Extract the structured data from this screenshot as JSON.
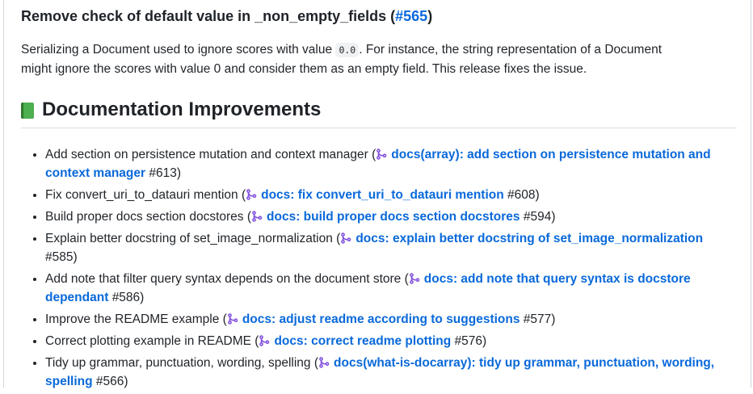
{
  "fix_section": {
    "title": "Remove check of default value in _non_empty_fields",
    "issue_link": "#565",
    "para_before_code": "Serializing a Document used to ignore scores with value ",
    "code": "0.0",
    "para_after_code": ". For instance, the string representation of a Document might ignore the scores with value 0 and consider them as an empty field. This release fixes the issue."
  },
  "docs_section": {
    "icon": "green-book-icon",
    "title": "Documentation Improvements",
    "items": [
      {
        "text": "Add section on persistence mutation and context manager",
        "pr_title": "docs(array): add section on persistence mutation and context manager",
        "pr_number": "#613"
      },
      {
        "text": "Fix convert_uri_to_datauri mention",
        "pr_title": "docs: fix convert_uri_to_datauri mention",
        "pr_number": "#608"
      },
      {
        "text": "Build proper docs section docstores",
        "pr_title": "docs: build proper docs section docstores",
        "pr_number": "#594"
      },
      {
        "text": "Explain better docstring of set_image_normalization",
        "pr_title": "docs: explain better docstring of set_image_normalization",
        "pr_number": "#585"
      },
      {
        "text": "Add note that filter query syntax depends on the document store",
        "pr_title": "docs: add note that query syntax is docstore dependant",
        "pr_number": "#586"
      },
      {
        "text": "Improve the README example",
        "pr_title": "docs: adjust readme according to suggestions",
        "pr_number": "#577"
      },
      {
        "text": "Correct plotting example in README",
        "pr_title": "docs: correct readme plotting",
        "pr_number": "#576"
      },
      {
        "text": "Tidy up grammar, punctuation, wording, spelling",
        "pr_title": "docs(what-is-docarray): tidy up grammar, punctuation, wording, spelling",
        "pr_number": "#566"
      }
    ]
  },
  "colors": {
    "link": "#0969da",
    "merged_icon": "#8250df",
    "text": "#1f2328"
  }
}
